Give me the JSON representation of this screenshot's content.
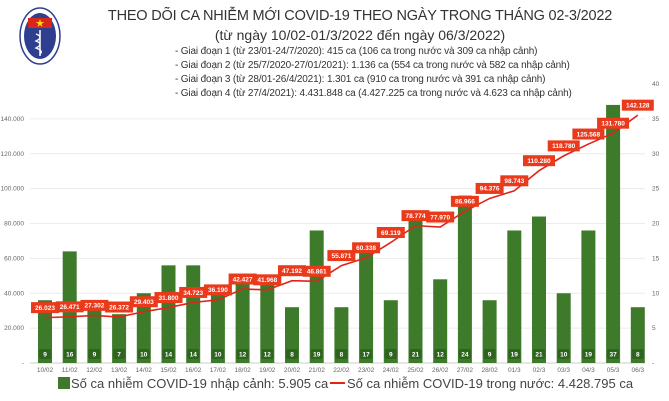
{
  "header": {
    "title": "THEO DÕI CA NHIỄM MỚI COVID-19 THEO NGÀY TRONG THÁNG 02-3/2022",
    "subtitle": "(từ ngày 10/02-01/3/2022 đến ngày 06/3/2022)",
    "logo_text": "BỘ Y TẾ",
    "stages": [
      "- Giai đoạn 1 (từ 23/01-24/7/2020): 415 ca (106 ca trong nước và 309 ca nhập cảnh)",
      "- Giai đoạn 2 (từ 25/7/2020-27/01/2021): 1.136 ca (554 ca trong nước và 582 ca nhập cảnh)",
      "- Giai đoạn 3 (từ 28/01-26/4/2021): 1.301 ca (910 ca trong nước và 391 ca nhập cảnh)",
      "- Giai đoạn 4 (từ 27/4/2021): 4.431.848 ca (4.427.225 ca trong nước và 4.623 ca nhập cảnh)"
    ]
  },
  "chart_data": {
    "type": "bar+line",
    "categories": [
      "10/02",
      "11/02",
      "12/02",
      "13/02",
      "14/02",
      "15/02",
      "16/02",
      "17/02",
      "18/02",
      "19/02",
      "20/02",
      "21/02",
      "22/02",
      "23/02",
      "24/02",
      "25/02",
      "26/02",
      "27/02",
      "28/02",
      "01/3",
      "02/3",
      "03/3",
      "04/3",
      "05/3",
      "06/3"
    ],
    "series": [
      {
        "name": "Số ca nhiễm COVID-19 nhập cảnh: 5.905 ca",
        "type": "bar",
        "axis": "right",
        "color": "#3d7a2a",
        "values": [
          9,
          16,
          9,
          7,
          10,
          14,
          14,
          10,
          12,
          12,
          8,
          19,
          8,
          17,
          9,
          21,
          12,
          24,
          9,
          19,
          21,
          10,
          19,
          37,
          8
        ]
      },
      {
        "name": "Số ca nhiễm COVID-19 trong nước: 4.428.795 ca",
        "type": "line",
        "axis": "left",
        "color": "#e2231a",
        "values": [
          26023,
          26471,
          27302,
          26372,
          29403,
          31800,
          34723,
          36190,
          42427,
          41968,
          47192,
          46861,
          55871,
          60338,
          69119,
          78774,
          77970,
          86966,
          94376,
          98743,
          110280,
          118780,
          125568,
          131780,
          142128
        ],
        "labels": [
          "26.023",
          "26.471",
          "27.302",
          "26.372",
          "29.403",
          "31.800",
          "34.723",
          "36.190",
          "42.427",
          "41.968",
          "47.192",
          "46.861",
          "55.871",
          "60.338",
          "69.119",
          "78.774",
          "77.970",
          "86.966",
          "94.376",
          "98.743",
          "110.280",
          "118.780",
          "125.568",
          "131.780",
          "142.128"
        ]
      }
    ],
    "left_axis": {
      "ylim": [
        0,
        160000
      ],
      "ticks": [
        "-",
        "20.000",
        "40.000",
        "60.000",
        "80.000",
        "100.000",
        "120.000",
        "140.000"
      ],
      "tick_values": [
        0,
        20000,
        40000,
        60000,
        80000,
        100000,
        120000,
        140000
      ]
    },
    "right_axis": {
      "ylim": [
        0,
        40
      ],
      "ticks": [
        "-",
        "5",
        "10",
        "15",
        "20",
        "25",
        "30",
        "35",
        "40"
      ],
      "tick_values": [
        0,
        5,
        10,
        15,
        20,
        25,
        30,
        35,
        40
      ]
    },
    "grid": true,
    "legend": "bottom"
  }
}
